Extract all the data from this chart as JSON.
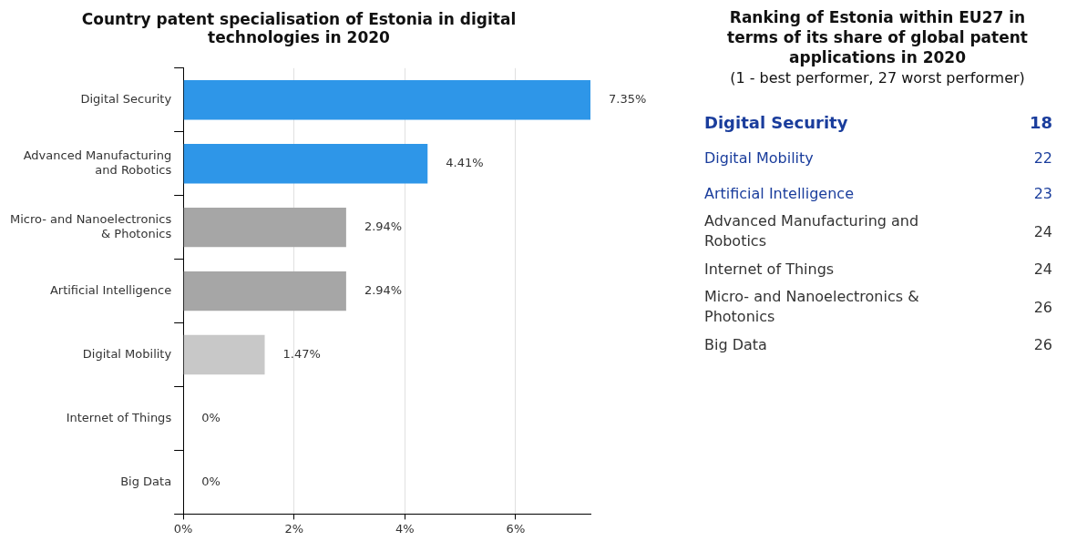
{
  "chart_data": [
    {
      "type": "bar",
      "orientation": "horizontal",
      "title": "Country patent specialisation of Estonia in digital technologies in 2020",
      "categories": [
        "Digital Security",
        "Advanced Manufacturing and Robotics",
        "Micro- and Nanoelectronics & Photonics",
        "Artificial Intelligence",
        "Digital Mobility",
        "Internet of Things",
        "Big Data"
      ],
      "values": [
        7.35,
        4.41,
        2.94,
        2.94,
        1.47,
        0,
        0
      ],
      "colors": [
        "#2e96e8",
        "#2e96e8",
        "#a6a6a6",
        "#a6a6a6",
        "#c8c8c8",
        "#c8c8c8",
        "#c8c8c8"
      ],
      "value_labels": [
        "7.35%",
        "4.41%",
        "2.94%",
        "2.94%",
        "1.47%",
        "0%",
        "0%"
      ],
      "xlim": [
        0,
        7.35
      ],
      "xticks": [
        {
          "value": 0,
          "label": "0%"
        },
        {
          "value": 2,
          "label": "2%"
        },
        {
          "value": 4,
          "label": "4%"
        },
        {
          "value": 6,
          "label": "6%"
        }
      ],
      "grid": "x",
      "legend": false
    },
    {
      "type": "other",
      "title": "Ranking of Estonia within EU27 in terms of its share of global patent applications in 2020",
      "subtitle": "(1 - best performer, 27 worst performer)",
      "categories": [
        "Digital Security",
        "Digital Mobility",
        "Artificial Intelligence",
        "Advanced Manufacturing and Robotics",
        "Internet of Things",
        "Micro- and Nanoelectronics & Photonics",
        "Big Data"
      ],
      "value_labels": [
        "18",
        "22",
        "23",
        "24",
        "24",
        "26",
        "26"
      ],
      "colors": [
        "#1a3d9c",
        "#1a3d9c",
        "#1a3d9c",
        "#333333",
        "#333333",
        "#333333",
        "#333333"
      ]
    }
  ]
}
